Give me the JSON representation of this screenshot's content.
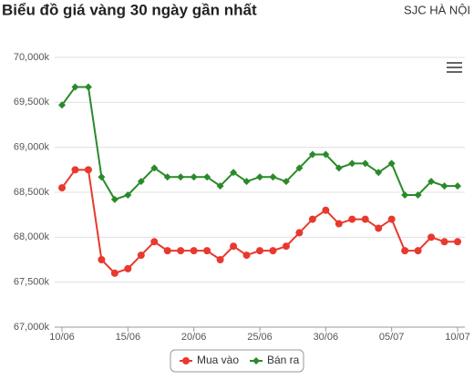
{
  "chart_data": {
    "type": "line",
    "title": "Biểu đồ giá vàng 30 ngày gần nhất",
    "subtitle": "SJC HÀ NỘI",
    "categories": [
      "10/06",
      null,
      null,
      null,
      null,
      "15/06",
      null,
      null,
      null,
      null,
      "20/06",
      null,
      null,
      null,
      null,
      "25/06",
      null,
      null,
      null,
      null,
      "30/06",
      null,
      null,
      null,
      null,
      "05/07",
      null,
      null,
      null,
      null,
      "10/07"
    ],
    "series": [
      {
        "name": "Mua vào",
        "color": "#e8392f",
        "values": [
          68550,
          68750,
          68750,
          67750,
          67600,
          67650,
          67800,
          67950,
          67850,
          67850,
          67850,
          67850,
          67750,
          67900,
          67800,
          67850,
          67850,
          67900,
          68050,
          68200,
          68300,
          68150,
          68200,
          68200,
          68100,
          68200,
          67850,
          67850,
          68000,
          67950,
          67950
        ]
      },
      {
        "name": "Bán ra",
        "color": "#2a8a2a",
        "values": [
          69470,
          69670,
          69670,
          68670,
          68420,
          68470,
          68620,
          68770,
          68670,
          68670,
          68670,
          68670,
          68570,
          68720,
          68620,
          68670,
          68670,
          68620,
          68770,
          68920,
          68920,
          68770,
          68820,
          68820,
          68720,
          68820,
          68470,
          68470,
          68620,
          68570,
          68570
        ]
      }
    ],
    "ylim": [
      67000,
      70000
    ],
    "yticks": [
      {
        "value": 67000,
        "label": "67,000k"
      },
      {
        "value": 67500,
        "label": "67,500k"
      },
      {
        "value": 68000,
        "label": "68,000k"
      },
      {
        "value": 68500,
        "label": "68,500k"
      },
      {
        "value": 69000,
        "label": "69,000k"
      },
      {
        "value": 69500,
        "label": "69,500k"
      },
      {
        "value": 70000,
        "label": "70,000k"
      }
    ],
    "grid": true
  }
}
